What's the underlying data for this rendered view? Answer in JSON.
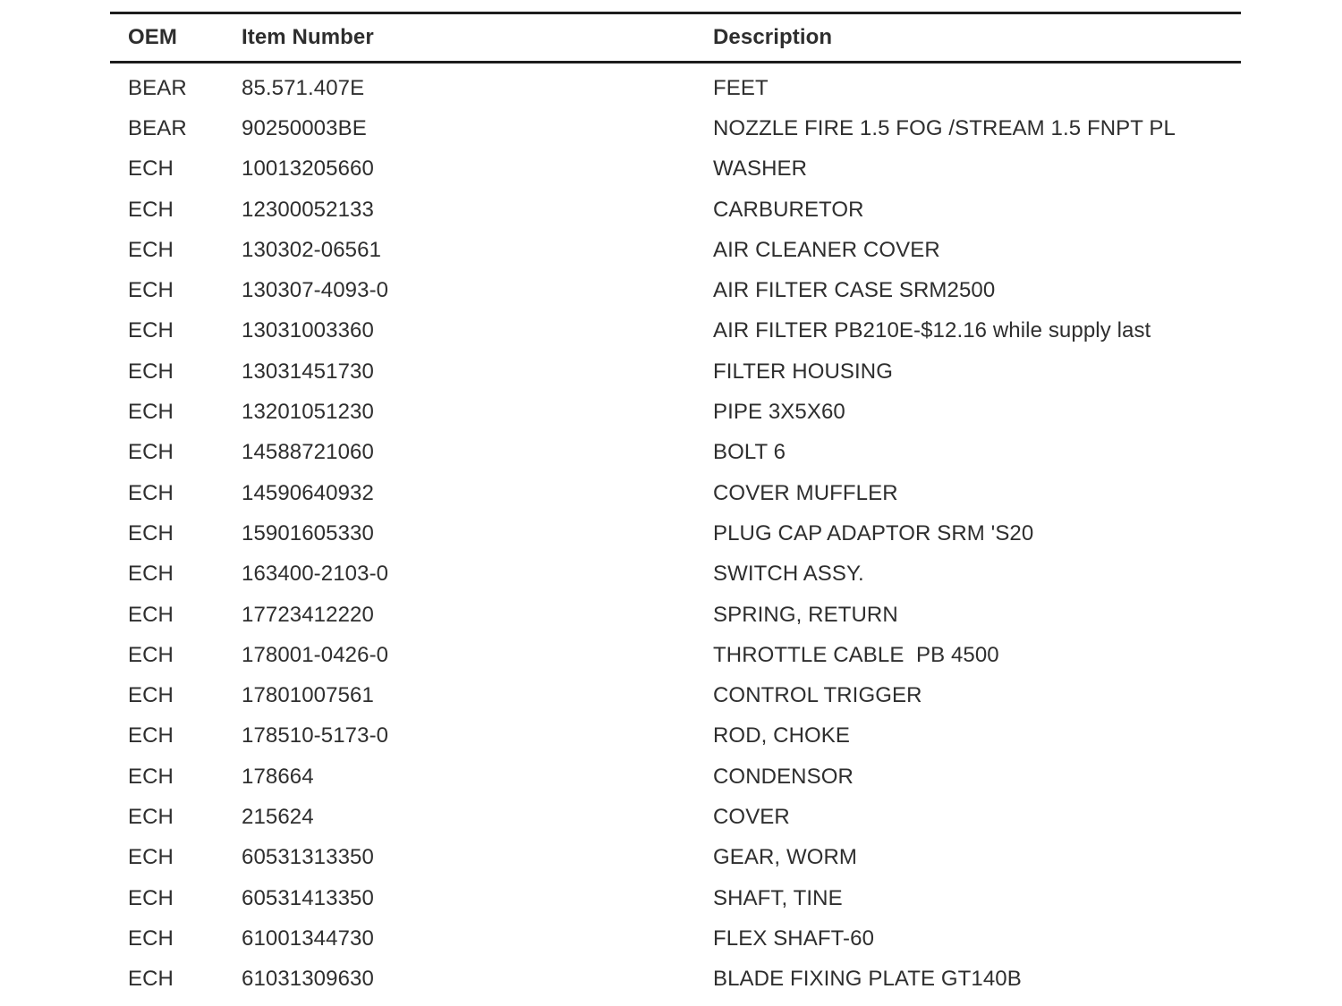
{
  "page": {
    "background_color": "#ffffff",
    "rule_color": "#1d1d1d",
    "text_color": "#2e2e2e"
  },
  "table": {
    "headers": {
      "oem": "OEM",
      "item_number": "Item Number",
      "description": "Description"
    },
    "rows": [
      {
        "oem": "BEAR",
        "item_number": "85.571.407E",
        "description": "FEET"
      },
      {
        "oem": "BEAR",
        "item_number": "90250003BE",
        "description": "NOZZLE FIRE 1.5 FOG /STREAM 1.5 FNPT PL"
      },
      {
        "oem": "ECH",
        "item_number": "10013205660",
        "description": "WASHER"
      },
      {
        "oem": "ECH",
        "item_number": "12300052133",
        "description": "CARBURETOR"
      },
      {
        "oem": "ECH",
        "item_number": "130302-06561",
        "description": "AIR CLEANER COVER"
      },
      {
        "oem": "ECH",
        "item_number": "130307-4093-0",
        "description": "AIR FILTER CASE SRM2500"
      },
      {
        "oem": "ECH",
        "item_number": "13031003360",
        "description": "AIR FILTER PB210E-$12.16 while supply last"
      },
      {
        "oem": "ECH",
        "item_number": "13031451730",
        "description": "FILTER HOUSING"
      },
      {
        "oem": "ECH",
        "item_number": "13201051230",
        "description": "PIPE 3X5X60"
      },
      {
        "oem": "ECH",
        "item_number": "14588721060",
        "description": "BOLT 6"
      },
      {
        "oem": "ECH",
        "item_number": "14590640932",
        "description": "COVER MUFFLER"
      },
      {
        "oem": "ECH",
        "item_number": "15901605330",
        "description": "PLUG CAP ADAPTOR SRM 'S20"
      },
      {
        "oem": "ECH",
        "item_number": "163400-2103-0",
        "description": "SWITCH ASSY."
      },
      {
        "oem": "ECH",
        "item_number": "17723412220",
        "description": "SPRING, RETURN"
      },
      {
        "oem": "ECH",
        "item_number": "178001-0426-0",
        "description": "THROTTLE CABLE  PB 4500"
      },
      {
        "oem": "ECH",
        "item_number": "17801007561",
        "description": "CONTROL TRIGGER"
      },
      {
        "oem": "ECH",
        "item_number": "178510-5173-0",
        "description": "ROD, CHOKE"
      },
      {
        "oem": "ECH",
        "item_number": "178664",
        "description": "CONDENSOR"
      },
      {
        "oem": "ECH",
        "item_number": "215624",
        "description": "COVER"
      },
      {
        "oem": "ECH",
        "item_number": "60531313350",
        "description": "GEAR, WORM"
      },
      {
        "oem": "ECH",
        "item_number": "60531413350",
        "description": "SHAFT, TINE"
      },
      {
        "oem": "ECH",
        "item_number": "61001344730",
        "description": "FLEX SHAFT-60"
      },
      {
        "oem": "ECH",
        "item_number": "61031309630",
        "description": "BLADE FIXING PLATE GT140B"
      }
    ]
  }
}
